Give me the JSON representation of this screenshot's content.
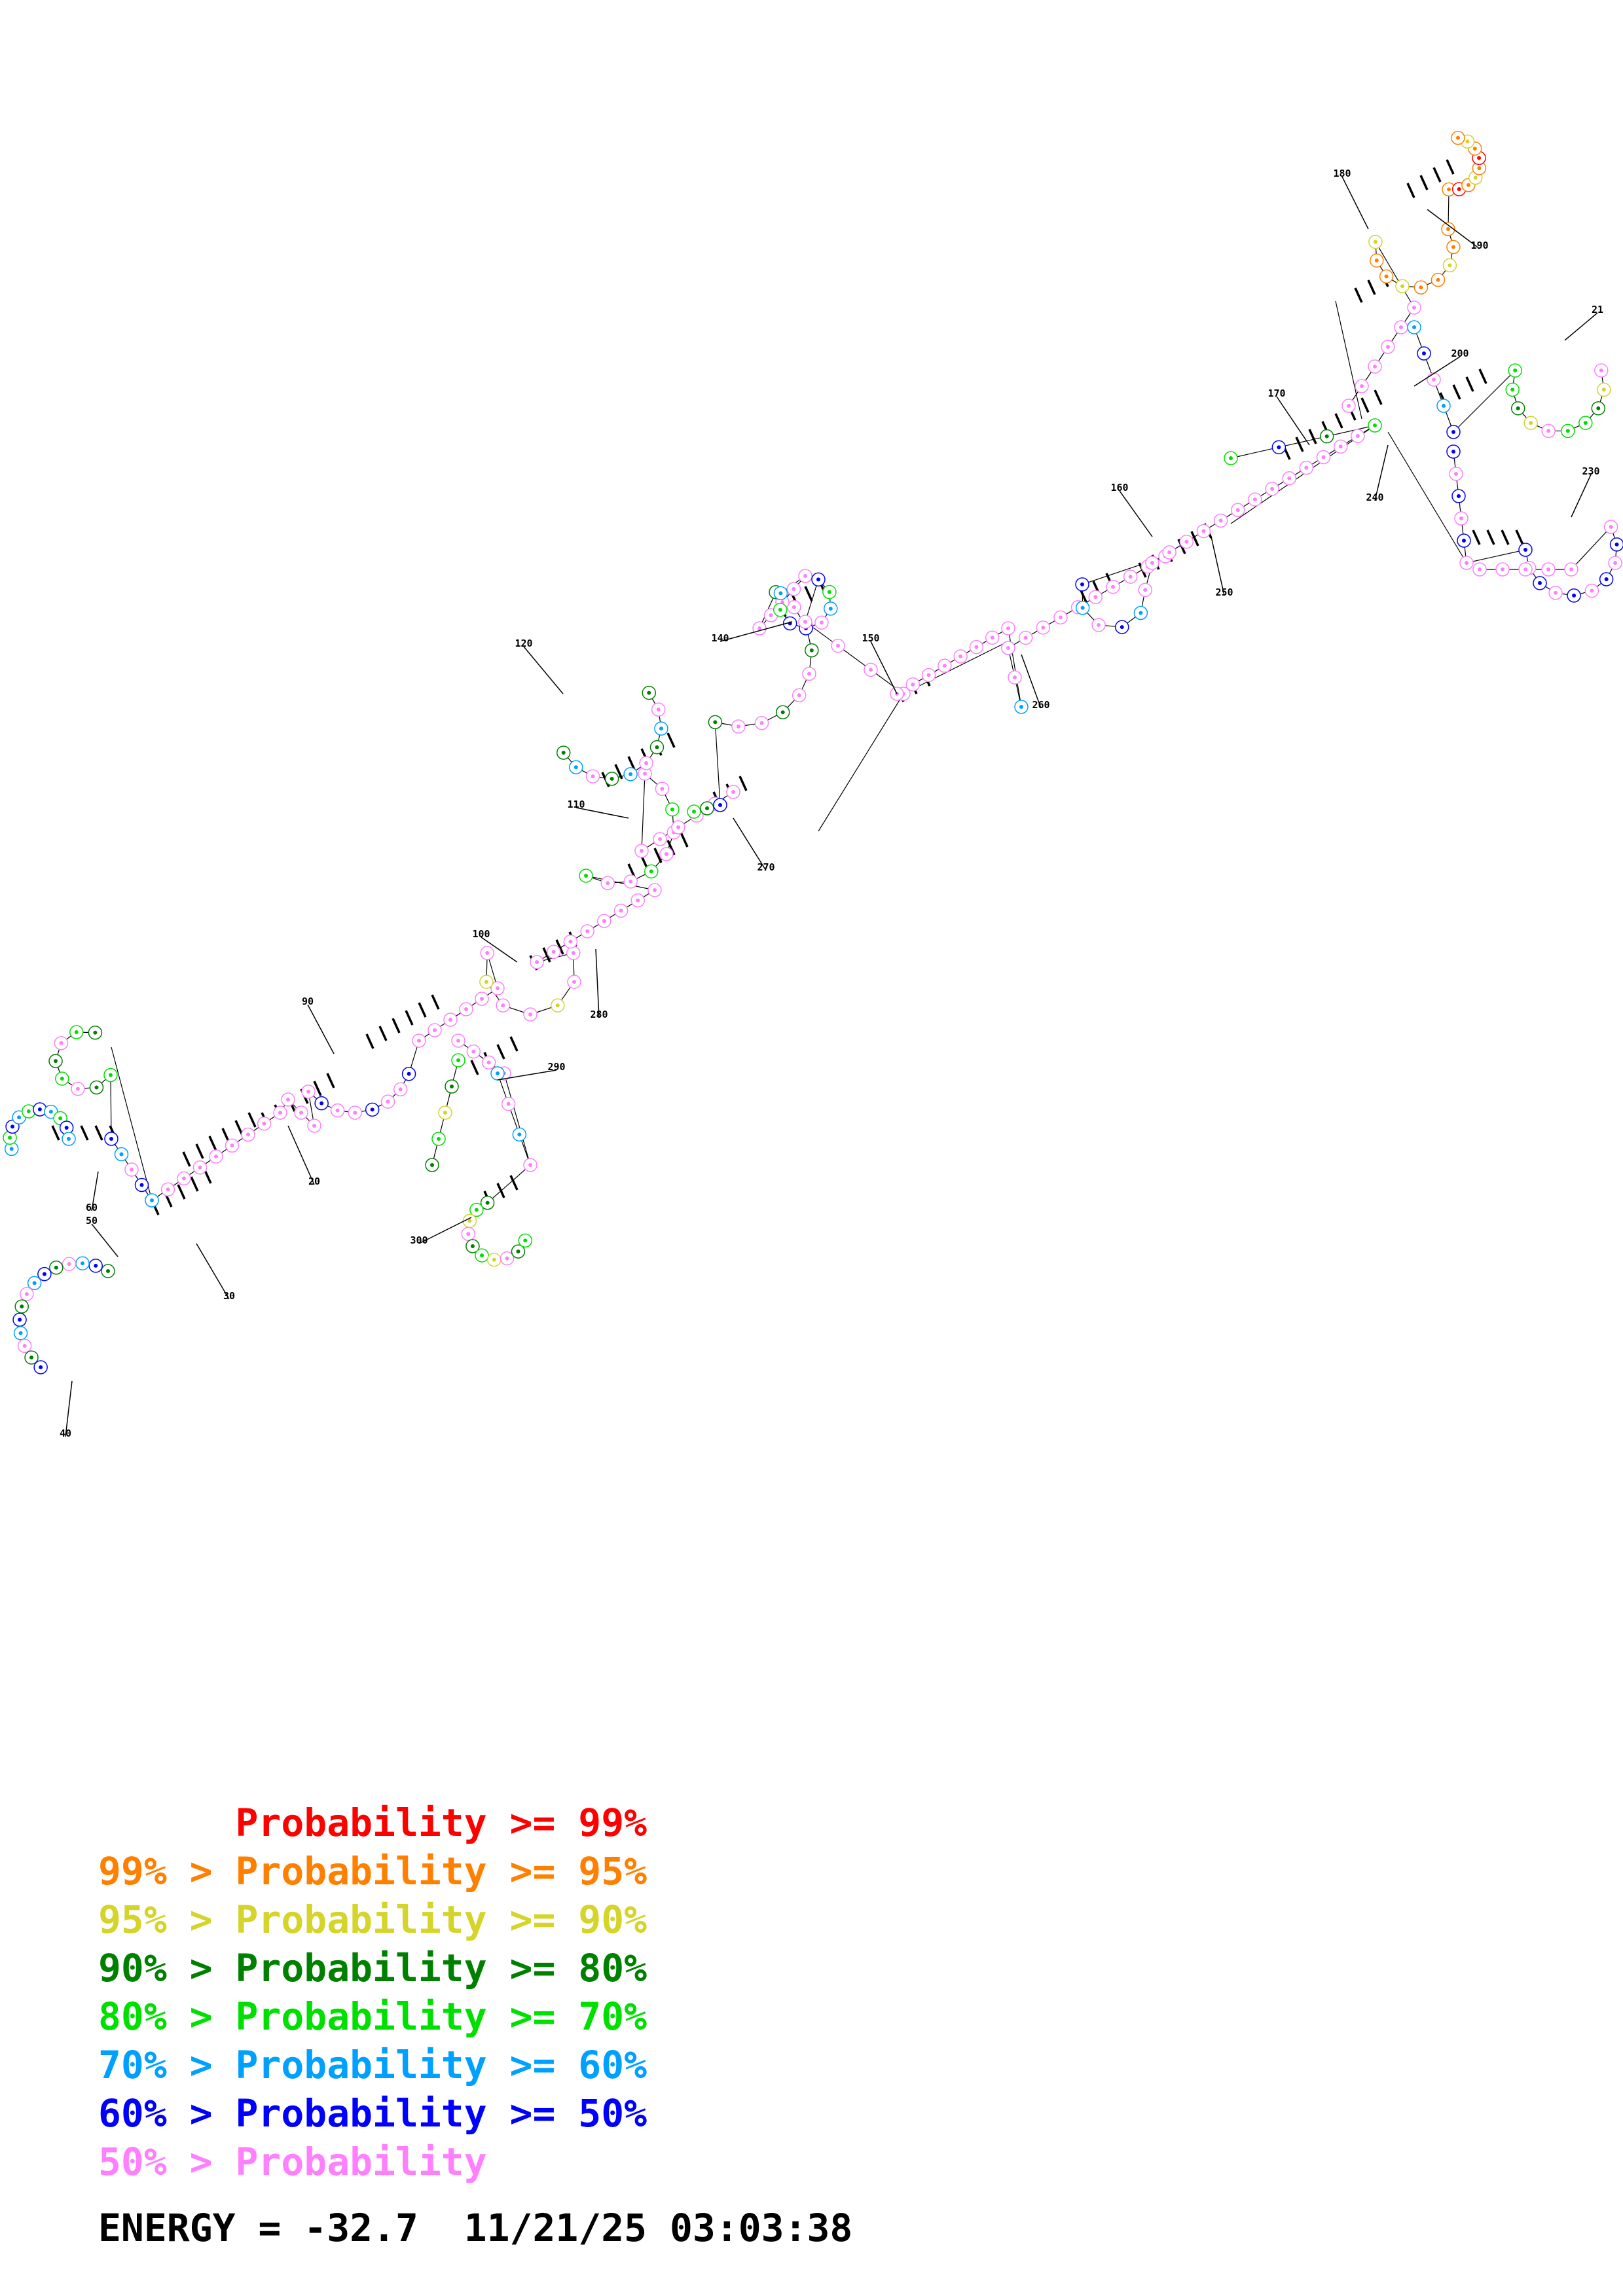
{
  "legend": [
    {
      "prefix": "",
      "text": "Probability >= 99%",
      "color": "#ff0000"
    },
    {
      "prefix": "99% > ",
      "text": "Probability >= 95%",
      "color": "#ff8000"
    },
    {
      "prefix": "95% > ",
      "text": "Probability >= 90%",
      "color": "#d4d42a"
    },
    {
      "prefix": "90% > ",
      "text": "Probability >= 80%",
      "color": "#008000"
    },
    {
      "prefix": "80% > ",
      "text": "Probability >= 70%",
      "color": "#00e000"
    },
    {
      "prefix": "70% > ",
      "text": "Probability >= 60%",
      "color": "#00a0ff"
    },
    {
      "prefix": "60% > ",
      "text": "Probability >= 50%",
      "color": "#0000ff"
    },
    {
      "prefix": "50% > ",
      "text": "Probability",
      "color": "#ff80ff"
    }
  ],
  "footer": {
    "energy": "ENERGY = -32.7",
    "timestamp": "11/21/25 03:03:38"
  },
  "position_labels": [
    "20",
    "30",
    "40",
    "50",
    "60",
    "90",
    "100",
    "110",
    "120",
    "140",
    "150",
    "160",
    "170",
    "180",
    "190",
    "200",
    "21",
    "230",
    "240",
    "250",
    "260",
    "270",
    "280",
    "290",
    "300"
  ],
  "colors": {
    "pink": "#ff80ff",
    "red": "#ff0000",
    "orange": "#ff8000",
    "yellow": "#d4d42a",
    "darkgreen": "#008000",
    "green": "#00e000",
    "lightblue": "#00a0ff",
    "blue": "#0000ff"
  }
}
